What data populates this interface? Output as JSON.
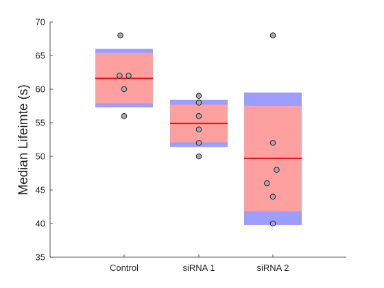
{
  "chart_data": {
    "type": "box-scatter",
    "title": "",
    "xlabel": "",
    "ylabel": "Median Lifeimte (s)",
    "ylim": [
      35,
      70
    ],
    "yticks": [
      35,
      40,
      45,
      50,
      55,
      60,
      65,
      70
    ],
    "categories": [
      "Control",
      "siRNA 1",
      "siRNA 2"
    ],
    "groups": [
      {
        "name": "Control",
        "mean": 61.6,
        "sd_low": 57.3,
        "sd_high": 66.0,
        "ci_low": 57.9,
        "ci_high": 65.4,
        "points": [
          {
            "x_offset": -0.05,
            "y": 68
          },
          {
            "x_offset": -0.06,
            "y": 62
          },
          {
            "x_offset": 0.06,
            "y": 62
          },
          {
            "x_offset": 0.0,
            "y": 60
          },
          {
            "x_offset": 0.0,
            "y": 56
          }
        ]
      },
      {
        "name": "siRNA 1",
        "mean": 54.9,
        "sd_low": 51.4,
        "sd_high": 58.4,
        "ci_low": 52.1,
        "ci_high": 57.7,
        "points": [
          {
            "x_offset": 0.0,
            "y": 59
          },
          {
            "x_offset": 0.0,
            "y": 58
          },
          {
            "x_offset": 0.0,
            "y": 56
          },
          {
            "x_offset": 0.0,
            "y": 54
          },
          {
            "x_offset": 0.0,
            "y": 52
          },
          {
            "x_offset": 0.0,
            "y": 50
          }
        ]
      },
      {
        "name": "siRNA 2",
        "mean": 49.7,
        "sd_low": 39.8,
        "sd_high": 59.5,
        "ci_low": 41.8,
        "ci_high": 57.5,
        "points": [
          {
            "x_offset": 0.0,
            "y": 68
          },
          {
            "x_offset": 0.0,
            "y": 52
          },
          {
            "x_offset": 0.05,
            "y": 48
          },
          {
            "x_offset": -0.08,
            "y": 46
          },
          {
            "x_offset": 0.0,
            "y": 44
          },
          {
            "x_offset": 0.0,
            "y": 40
          }
        ]
      }
    ],
    "colors": {
      "sd_band": "#9d9dff",
      "ci_band": "#ffa0a0",
      "mean_line": "#e61919",
      "point_fill": "#a8a8a8",
      "point_edge": "#1a1a1a",
      "axis": "#262626"
    }
  }
}
